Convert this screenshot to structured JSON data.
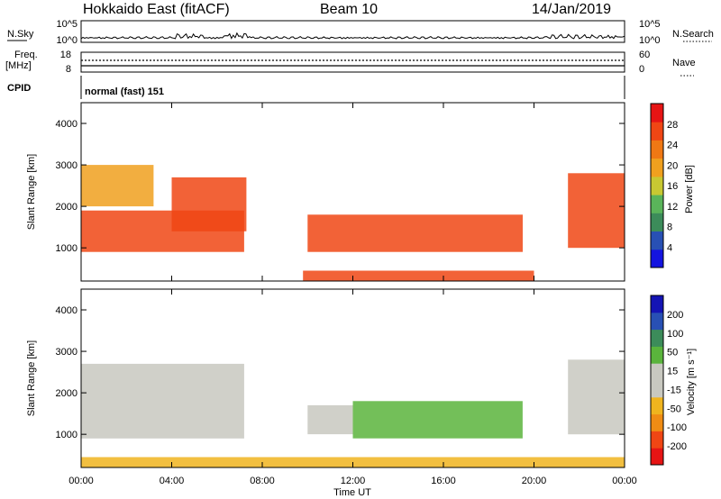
{
  "header": {
    "station": "Hokkaido East (fitACF)",
    "beam": "Beam 10",
    "date": "14/Jan/2019"
  },
  "panels": {
    "nsky": {
      "left_label": "N.Sky",
      "ticks_left": [
        "10^5",
        "10^0"
      ],
      "right_label": "N.Search",
      "ticks_right": [
        "10^5",
        "10^0"
      ]
    },
    "freq": {
      "left_label_1": "Freq.",
      "left_label_2": "[MHz]",
      "ticks_left": [
        "18",
        "8"
      ],
      "right_label": "Nave",
      "ticks_right": [
        "60",
        "0"
      ]
    },
    "cpid": {
      "left_label": "CPID",
      "value": "normal (fast) 151"
    }
  },
  "chart_data": [
    {
      "type": "heatmap",
      "title": "",
      "xlabel": "Time UT",
      "ylabel": "Slant Range [km]",
      "x_ticks": [
        "00:00",
        "04:00",
        "08:00",
        "12:00",
        "16:00",
        "20:00",
        "00:00"
      ],
      "y_ticks": [
        1000,
        2000,
        3000,
        4000
      ],
      "xlim": [
        0,
        24
      ],
      "ylim": [
        200,
        4500
      ],
      "colorbar": {
        "label": "Power [dB]",
        "ticks": [
          "28",
          "24",
          "20",
          "16",
          "12",
          "8",
          "4"
        ],
        "range": [
          0,
          32
        ],
        "colors": [
          "#1414e0",
          "#2850b4",
          "#3c8c5a",
          "#5ab45a",
          "#c8c832",
          "#f0a01e",
          "#f07814",
          "#f04614",
          "#e61414"
        ]
      },
      "regions": [
        {
          "x": [
            0.0,
            7.2
          ],
          "y": [
            900,
            1900
          ],
          "value": "high"
        },
        {
          "x": [
            0.0,
            3.2
          ],
          "y": [
            2000,
            3000
          ],
          "value": "medium"
        },
        {
          "x": [
            4.0,
            7.3
          ],
          "y": [
            1400,
            2700
          ],
          "value": "high"
        },
        {
          "x": [
            10.0,
            19.5
          ],
          "y": [
            900,
            1800
          ],
          "value": "high"
        },
        {
          "x": [
            9.8,
            20.0
          ],
          "y": [
            200,
            450
          ],
          "value": "high"
        },
        {
          "x": [
            21.5,
            24.0
          ],
          "y": [
            1000,
            2800
          ],
          "value": "high"
        }
      ]
    },
    {
      "type": "heatmap",
      "title": "",
      "xlabel": "Time UT",
      "ylabel": "Slant Range [km]",
      "x_ticks": [
        "00:00",
        "04:00",
        "08:00",
        "12:00",
        "16:00",
        "20:00",
        "00:00"
      ],
      "y_ticks": [
        1000,
        2000,
        3000,
        4000
      ],
      "xlim": [
        0,
        24
      ],
      "ylim": [
        200,
        4500
      ],
      "colorbar": {
        "label": "Velocity [m s⁻¹]",
        "ticks": [
          "200",
          "100",
          "50",
          "15",
          "-15",
          "-50",
          "-100",
          "-200"
        ],
        "range": [
          -250,
          250
        ],
        "colors": [
          "#e61414",
          "#f04614",
          "#f08c14",
          "#f0b41e",
          "#c8c8c0",
          "#c8c8c0",
          "#5ab43c",
          "#3c8c5a",
          "#2850b4",
          "#1414b4"
        ]
      },
      "regions": [
        {
          "x": [
            0.0,
            7.2
          ],
          "y": [
            900,
            2700
          ],
          "value": "ground scatter"
        },
        {
          "x": [
            10.0,
            12.0
          ],
          "y": [
            1000,
            1700
          ],
          "value": "ground scatter"
        },
        {
          "x": [
            12.0,
            19.5
          ],
          "y": [
            900,
            1800
          ],
          "value": "positive"
        },
        {
          "x": [
            0.0,
            24.0
          ],
          "y": [
            200,
            450
          ],
          "value": "negative"
        },
        {
          "x": [
            21.5,
            24.0
          ],
          "y": [
            1000,
            2800
          ],
          "value": "ground scatter"
        }
      ]
    }
  ]
}
